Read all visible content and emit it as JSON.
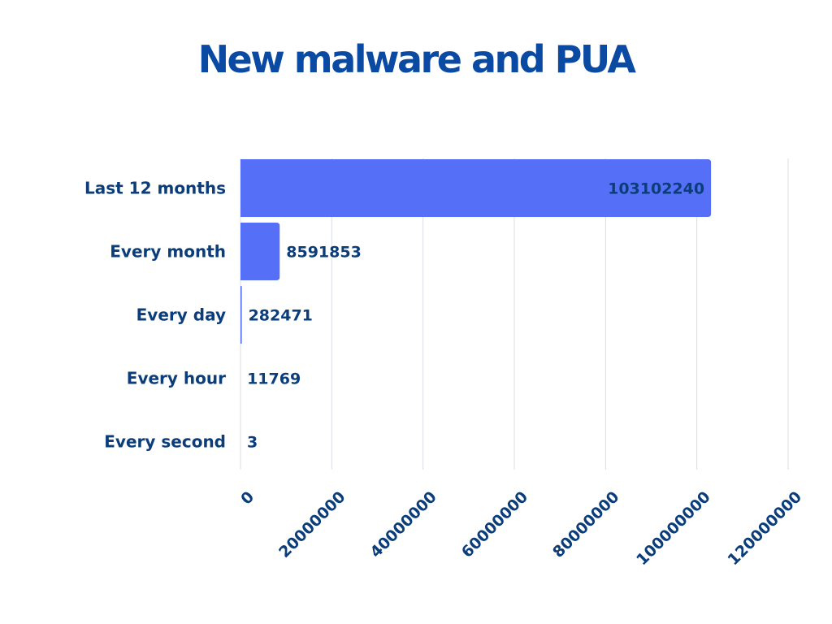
{
  "chart_data": {
    "type": "bar",
    "orientation": "horizontal",
    "title": "New malware and PUA",
    "categories": [
      "Last 12 months",
      "Every month",
      "Every day",
      "Every hour",
      "Every second"
    ],
    "values": [
      103102240,
      8591853,
      282471,
      11769,
      3
    ],
    "value_labels": [
      "103102240",
      "8591853",
      "282471",
      "11769",
      "3"
    ],
    "xlim": [
      0,
      120000000
    ],
    "x_ticks": [
      0,
      20000000,
      40000000,
      60000000,
      80000000,
      100000000,
      120000000
    ],
    "x_tick_labels": [
      "0",
      "20000000",
      "40000000",
      "60000000",
      "80000000",
      "100000000",
      "120000000"
    ],
    "xlabel": "",
    "ylabel": "",
    "grid": true,
    "legend": "none",
    "colors": {
      "bar": "#5570f6",
      "title": "#0b4aa3",
      "text": "#0b3d7a",
      "inside_label": "#ffffff",
      "grid": "#d9dde6"
    }
  }
}
